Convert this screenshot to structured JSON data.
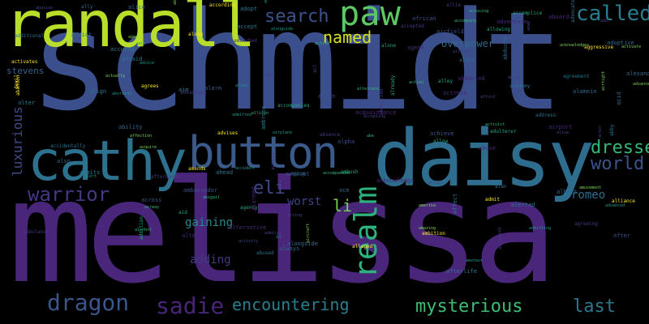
{
  "words": {
    "melissa": {
      "text": "melissa",
      "color": "#4a267a"
    },
    "schmidt": {
      "text": "schmidt",
      "color": "#3b4f8c"
    },
    "randall": {
      "text": "randall",
      "color": "#b8de29"
    },
    "daisy": {
      "text": "daisy",
      "color": "#2f6d8e"
    },
    "cathy": {
      "text": "cathy",
      "color": "#2c728e"
    },
    "button": {
      "text": "button",
      "color": "#3a5a8c"
    },
    "paw": {
      "text": "paw",
      "color": "#5cc863"
    },
    "realm": {
      "text": "realm",
      "color": "#2db27d"
    },
    "called": {
      "text": "called",
      "color": "#287d8e"
    },
    "dressed": {
      "text": "dressed",
      "color": "#35b779"
    },
    "world": {
      "text": "world",
      "color": "#3b528b"
    },
    "warrior": {
      "text": "warrior",
      "color": "#453781"
    },
    "dragon": {
      "text": "dragon",
      "color": "#39568c"
    },
    "sadie": {
      "text": "sadie",
      "color": "#482576"
    },
    "encountering": {
      "text": "encountering",
      "color": "#277f8e"
    },
    "mysterious": {
      "text": "mysterious",
      "color": "#3dbc74"
    },
    "last": {
      "text": "last",
      "color": "#2a788e"
    },
    "named": {
      "text": "named",
      "color": "#d8e219"
    },
    "search": {
      "text": "search",
      "color": "#3b528b"
    },
    "eli": {
      "text": "eli",
      "color": "#3f4889"
    },
    "li": {
      "text": "li",
      "color": "#73d055"
    },
    "worst": {
      "text": "worst",
      "color": "#414487"
    },
    "luxurious": {
      "text": "luxurious",
      "color": "#3e4a89"
    },
    "romeo": {
      "text": "romeo",
      "color": "#2e6e8e"
    },
    "gaining": {
      "text": "gaining",
      "color": "#238a8d"
    },
    "adding": {
      "text": "adding",
      "color": "#443983"
    },
    "stevens": {
      "text": "stevens",
      "color": "#34618d"
    },
    "overpower": {
      "text": "overpower",
      "color": "#31688e"
    }
  },
  "small_words": [
    "abusive",
    "ally",
    "alice",
    "abeam",
    "according",
    "adopt",
    "american",
    "allie",
    "african",
    "accusing",
    "accomplice",
    "aboard",
    "add",
    "additional",
    "addict",
    "aged",
    "along",
    "accept",
    "alongside",
    "accepted",
    "airfield",
    "accompany",
    "allowing",
    "adventure",
    "adam",
    "advocate",
    "adoptive",
    "activate",
    "activates",
    "accused",
    "air",
    "ambushed",
    "age",
    "active",
    "alone",
    "agent",
    "allowed",
    "aided",
    "abducts",
    "acknowledges",
    "aggressive",
    "afraid",
    "advice",
    "act",
    "abu",
    "action",
    "alley",
    "abducted",
    "abbey",
    "agreement",
    "alexander",
    "actually",
    "agrees",
    "aim",
    "alias",
    "ago",
    "alien",
    "alternate",
    "already",
    "actress",
    "afford",
    "academy",
    "alamein",
    "airtight",
    "devil",
    "align",
    "abortion",
    "advantage",
    "alarm",
    "allison",
    "accompanies",
    "acquaintance",
    "accepting",
    "address",
    "acid",
    "advance",
    "abandon",
    "alter",
    "admitted",
    "abduction",
    "achieve",
    "activist",
    "adulterer",
    "airport",
    "alive",
    "abby",
    "ability",
    "affection",
    "advises",
    "ambrose",
    "airplane",
    "absence",
    "alpha",
    "abe",
    "allow",
    "abuse",
    "actor",
    "accidentally",
    "also",
    "acquire",
    "amends",
    "ahead",
    "accident",
    "access",
    "account",
    "accompanied",
    "ambush",
    "acknowledge",
    "actual",
    "alan",
    "albert",
    "amusement",
    "alliance",
    "admits",
    "alert",
    "afterwards",
    "ambassador",
    "abigail",
    "agency",
    "alarmed",
    "acting",
    "aging",
    "ace",
    "amerika",
    "admit",
    "alerted",
    "advanced",
    "ambulance",
    "across",
    "airway",
    "aid",
    "alternative",
    "admiral",
    "ai",
    "alongside",
    "amazing",
    "ambition",
    "affect",
    "admitting",
    "agreeing",
    "after",
    "alcohol",
    "addition",
    "alter",
    "activity",
    "abused",
    "always",
    "aircraft",
    "alleged",
    "afterlife",
    "amateur",
    "adjacent"
  ],
  "colors": {
    "background": "#000000"
  }
}
